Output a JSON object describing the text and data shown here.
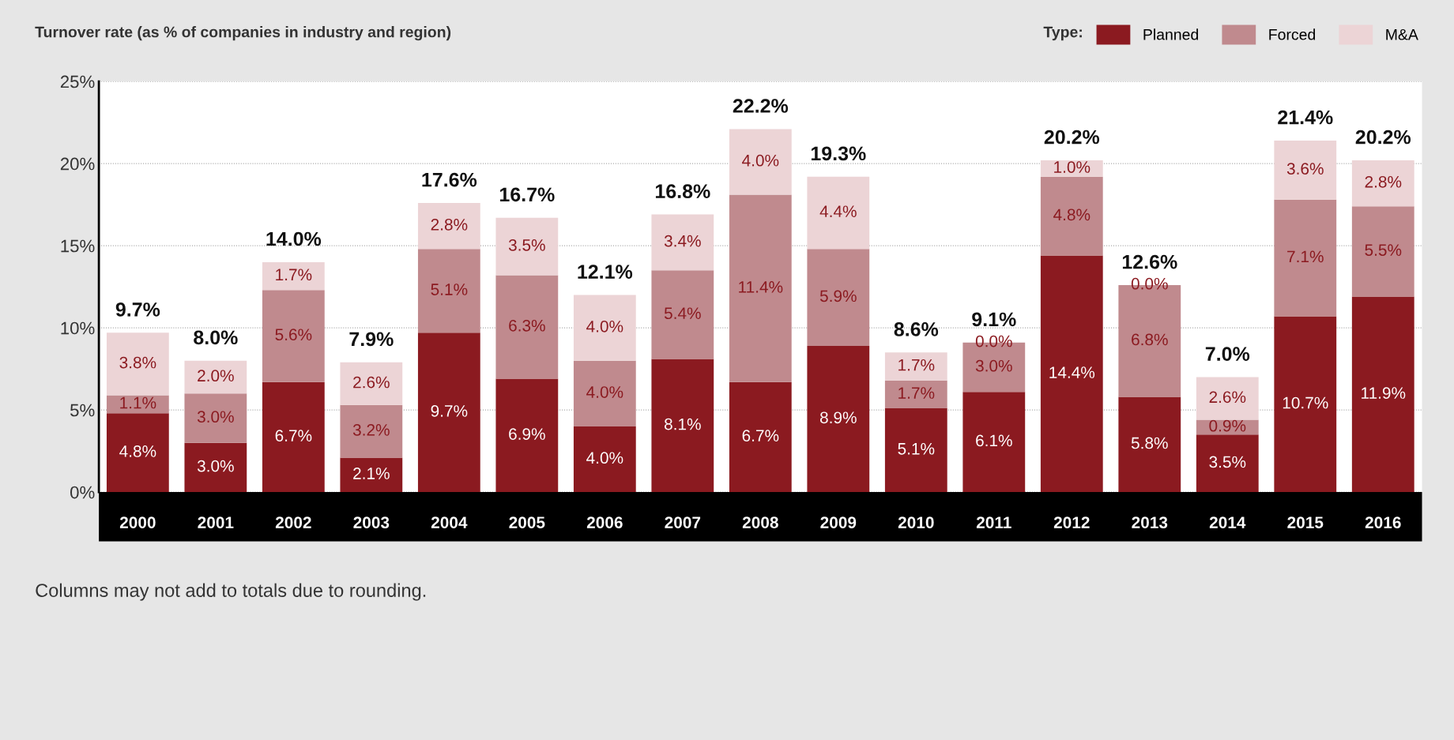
{
  "chart_data": {
    "type": "bar",
    "stacked": true,
    "title": "Turnover rate (as % of companies in industry and region)",
    "legend_title": "Type:",
    "legend": "top right",
    "grid": "y",
    "categories": [
      "2000",
      "2001",
      "2002",
      "2003",
      "2004",
      "2005",
      "2006",
      "2007",
      "2008",
      "2009",
      "2010",
      "2011",
      "2012",
      "2013",
      "2014",
      "2015",
      "2016"
    ],
    "series": [
      {
        "name": "Planned",
        "color": "#8b1a20",
        "values": [
          4.8,
          3.0,
          6.7,
          2.1,
          9.7,
          6.9,
          4.0,
          8.1,
          6.7,
          8.9,
          5.1,
          6.1,
          14.4,
          5.8,
          3.5,
          10.7,
          11.9
        ],
        "value_labels": [
          "4.8%",
          "3.0%",
          "6.7%",
          "2.1%",
          "9.7%",
          "6.9%",
          "4.0%",
          "8.1%",
          "6.7%",
          "8.9%",
          "5.1%",
          "6.1%",
          "14.4%",
          "5.8%",
          "3.5%",
          "10.7%",
          "11.9%"
        ]
      },
      {
        "name": "Forced",
        "color": "#c08a8e",
        "values": [
          1.1,
          3.0,
          5.6,
          3.2,
          5.1,
          6.3,
          4.0,
          5.4,
          11.4,
          5.9,
          1.7,
          3.0,
          4.8,
          6.8,
          0.9,
          7.1,
          5.5
        ],
        "value_labels": [
          "1.1%",
          "3.0%",
          "5.6%",
          "3.2%",
          "5.1%",
          "6.3%",
          "4.0%",
          "5.4%",
          "11.4%",
          "5.9%",
          "1.7%",
          "3.0%",
          "4.8%",
          "6.8%",
          "0.9%",
          "7.1%",
          "5.5%"
        ]
      },
      {
        "name": "M&A",
        "color": "#ecd4d6",
        "values": [
          3.8,
          2.0,
          1.7,
          2.6,
          2.8,
          3.5,
          4.0,
          3.4,
          4.0,
          4.4,
          1.7,
          0.0,
          1.0,
          0.0,
          2.6,
          3.6,
          2.8
        ],
        "value_labels": [
          "3.8%",
          "2.0%",
          "1.7%",
          "2.6%",
          "2.8%",
          "3.5%",
          "4.0%",
          "3.4%",
          "4.0%",
          "4.4%",
          "1.7%",
          "0.0%",
          "1.0%",
          "0.0%",
          "2.6%",
          "3.6%",
          "2.8%"
        ]
      }
    ],
    "totals": [
      "9.7%",
      "8.0%",
      "14.0%",
      "7.9%",
      "17.6%",
      "16.7%",
      "12.1%",
      "16.8%",
      "22.2%",
      "19.3%",
      "8.6%",
      "9.1%",
      "20.2%",
      "12.6%",
      "7.0%",
      "21.4%",
      "20.2%"
    ],
    "ylim": [
      0,
      25
    ],
    "yticks": [
      {
        "value": 0,
        "label": "0%"
      },
      {
        "value": 5,
        "label": "5%"
      },
      {
        "value": 10,
        "label": "10%"
      },
      {
        "value": 15,
        "label": "15%"
      },
      {
        "value": 20,
        "label": "20%"
      },
      {
        "value": 25,
        "label": "25%"
      }
    ],
    "annotations": [
      "Columns may not add to totals due to rounding."
    ]
  }
}
